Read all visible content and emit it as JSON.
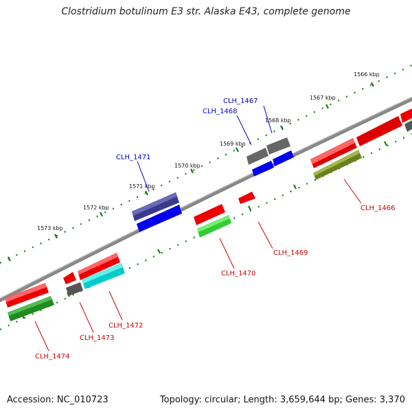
{
  "title": "Clostridium botulinum E3 str. Alaska E43, complete genome",
  "footer": {
    "accession": "Accession: NC_010723",
    "summary": "Topology: circular; Length: 3,659,644 bp; Genes: 3,370"
  },
  "scale_ticks": [
    "1566 kbp",
    "1567 kbp",
    "1568 kbp",
    "1569 kbp",
    "1570 kbp",
    "1571 kbp",
    "1572 kbp",
    "1573 kbp"
  ],
  "genes": [
    {
      "id": "g1",
      "label": "CLH_1466",
      "label_color": "#cc0000",
      "color": "#7a8c1e"
    },
    {
      "id": "g2",
      "label": "CLH_1467",
      "label_color": "#0000cc",
      "color": "#555555"
    },
    {
      "id": "g3",
      "label": "CLH_1468",
      "label_color": "#0000cc",
      "color": "#0000ee"
    },
    {
      "id": "g4",
      "label": "CLH_1469",
      "label_color": "#cc0000",
      "color": "#ee0000"
    },
    {
      "id": "g5",
      "label": "CLH_1470",
      "label_color": "#cc0000",
      "color": "#22bb22"
    },
    {
      "id": "g6",
      "label": "CLH_1471",
      "label_color": "#0000cc",
      "color": "#3a3a8c"
    },
    {
      "id": "g7",
      "label": "CLH_1472",
      "label_color": "#cc0000",
      "color": "#00cccc"
    },
    {
      "id": "g8",
      "label": "CLH_1473",
      "label_color": "#cc0000",
      "color": "#555555"
    },
    {
      "id": "g9",
      "label": "CLH_1474",
      "label_color": "#cc0000",
      "color": "#1e8c1e"
    }
  ],
  "colors": {
    "backbone": "#888888",
    "tick_marks": "#1a7a1a",
    "forward_gene": "#ee0000",
    "gray_gene": "#555555",
    "blue_gene": "#0000ee"
  }
}
